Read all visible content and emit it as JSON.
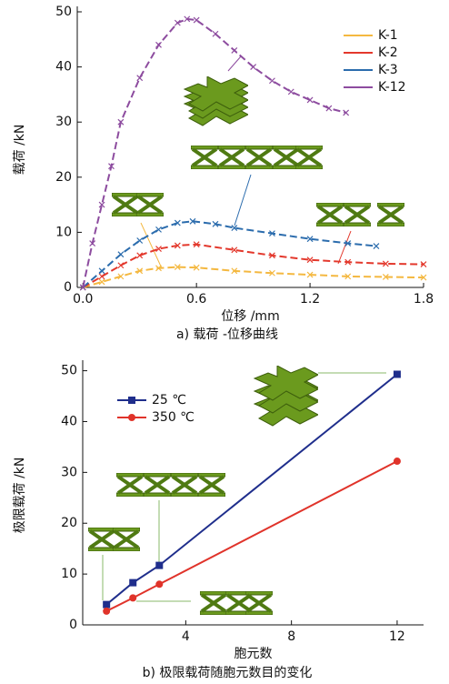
{
  "chart_data": [
    {
      "type": "line",
      "title": "a)    载荷 -位移曲线",
      "x_label": "位移 /mm",
      "y_label": "载荷 /kN",
      "xlim": [
        -0.03,
        1.8
      ],
      "xticks": [
        {
          "value": 0,
          "label": "0.0"
        },
        0.6,
        1.2,
        1.8
      ],
      "ylim": [
        0,
        50
      ],
      "yticks": [
        0,
        10,
        20,
        30,
        40,
        50
      ],
      "legend": "upper right",
      "linestyle": "dashed",
      "series": [
        {
          "name": "K-1",
          "color": "#f4b840",
          "marker": "x",
          "x": [
            0,
            0.1,
            0.2,
            0.3,
            0.4,
            0.5,
            0.6,
            0.8,
            1.0,
            1.2,
            1.4,
            1.6,
            1.8
          ],
          "values": [
            0,
            1,
            2,
            3,
            3.5,
            3.7,
            3.6,
            3,
            2.6,
            2.3,
            2,
            1.9,
            1.8
          ]
        },
        {
          "name": "K-2",
          "color": "#e3382c",
          "marker": "x",
          "x": [
            0,
            0.1,
            0.2,
            0.3,
            0.4,
            0.5,
            0.6,
            0.8,
            1.0,
            1.2,
            1.4,
            1.6,
            1.8
          ],
          "values": [
            0,
            2,
            4,
            5.8,
            7,
            7.6,
            7.8,
            6.8,
            5.8,
            5,
            4.6,
            4.3,
            4.2
          ]
        },
        {
          "name": "K-3",
          "color": "#2b6cad",
          "marker": "x",
          "x": [
            0,
            0.1,
            0.2,
            0.3,
            0.4,
            0.5,
            0.58,
            0.7,
            0.8,
            1.0,
            1.2,
            1.4,
            1.55
          ],
          "values": [
            0,
            3,
            6,
            8.5,
            10.5,
            11.7,
            12,
            11.5,
            10.8,
            9.8,
            8.8,
            8,
            7.5
          ]
        },
        {
          "name": "K-12",
          "color": "#8d4c9f",
          "marker": "x",
          "x": [
            0,
            0.05,
            0.1,
            0.15,
            0.2,
            0.3,
            0.4,
            0.5,
            0.55,
            0.6,
            0.7,
            0.8,
            0.9,
            1.0,
            1.1,
            1.2,
            1.3,
            1.39
          ],
          "values": [
            0,
            8,
            15,
            22,
            30,
            38,
            44,
            48,
            48.7,
            48.5,
            46,
            43,
            40,
            37.5,
            35.5,
            34,
            32.5,
            31.7
          ]
        }
      ]
    },
    {
      "type": "line",
      "title": "b)    极限载荷随胞元数目的变化",
      "x_label": "胞元数",
      "y_label": "极限载荷 /kN",
      "xlim": [
        0.1,
        13
      ],
      "xticks": [
        4,
        8,
        12
      ],
      "ylim": [
        0,
        51
      ],
      "yticks": [
        0,
        10,
        20,
        30,
        40,
        50
      ],
      "legend": "upper left",
      "linestyle": "solid",
      "series": [
        {
          "name": "25 ℃",
          "color": "#1f2e8c",
          "marker": "s",
          "x": [
            1,
            2,
            3,
            12
          ],
          "values": [
            4,
            8.3,
            11.7,
            49.3
          ]
        },
        {
          "name": "350 ℃",
          "color": "#e0332a",
          "marker": "o",
          "x": [
            1,
            2,
            3,
            12
          ],
          "values": [
            2.7,
            5.3,
            8,
            32.2
          ]
        }
      ]
    }
  ]
}
